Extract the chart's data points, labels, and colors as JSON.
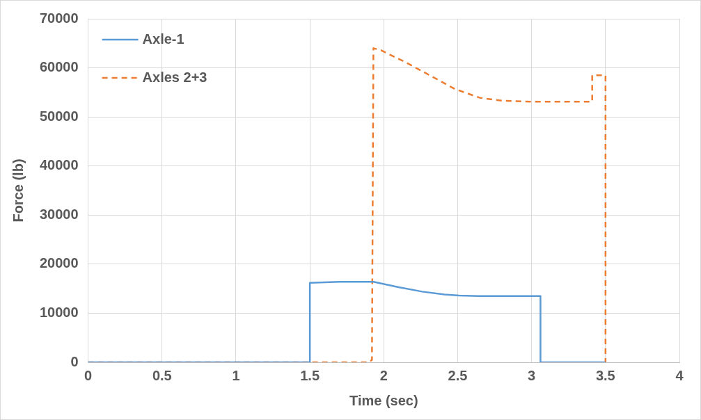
{
  "chart_data": {
    "type": "line",
    "xlabel": "Time (sec)",
    "ylabel": "Force (lb)",
    "xlim": [
      0,
      4
    ],
    "xticks": [
      0,
      0.5,
      1,
      1.5,
      2,
      2.5,
      3,
      3.5,
      4
    ],
    "ylim": [
      0,
      70000
    ],
    "yticks": [
      0,
      10000,
      20000,
      30000,
      40000,
      50000,
      60000,
      70000
    ],
    "grid": true,
    "legend": "top left",
    "marker": "none",
    "series": [
      {
        "name": "Axle-1",
        "color": "#5b9bd5",
        "line_style": "solid",
        "x": [
          0,
          1.5,
          1.5,
          1.7,
          1.93,
          2.1,
          2.26,
          2.41,
          2.51,
          2.64,
          3.06,
          3.06,
          3.5
        ],
        "values": [
          0,
          0,
          16200,
          16400,
          16400,
          15300,
          14400,
          13800,
          13600,
          13500,
          13500,
          0,
          0
        ]
      },
      {
        "name": "Axles 2+3",
        "color": "#ed7d31",
        "line_style": "dashed",
        "x": [
          0,
          1.9,
          1.92,
          1.93,
          1.98,
          2.15,
          2.31,
          2.48,
          2.65,
          2.8,
          3.01,
          3.41,
          3.41,
          3.5,
          3.5
        ],
        "values": [
          0,
          0,
          500,
          64000,
          63600,
          61100,
          58500,
          55700,
          53900,
          53300,
          53100,
          53100,
          58500,
          58500,
          0
        ]
      }
    ]
  }
}
